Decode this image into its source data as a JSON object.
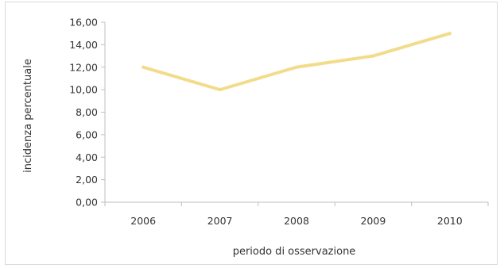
{
  "chart_data": {
    "type": "line",
    "categories": [
      "2006",
      "2007",
      "2008",
      "2009",
      "2010"
    ],
    "series": [
      {
        "values": [
          12.0,
          10.0,
          12.0,
          13.0,
          15.0
        ]
      }
    ],
    "xlabel": "periodo di osservazione",
    "ylabel": "incidenza percentuale",
    "ylim": [
      0,
      16
    ],
    "yticks": [
      "0,00",
      "2,00",
      "4,00",
      "6,00",
      "8,00",
      "10,00",
      "12,00",
      "14,00",
      "16,00"
    ],
    "grid": false,
    "legend": "none",
    "colors": {
      "line": "#f2dc8a",
      "axis": "#bfbfbf"
    }
  }
}
